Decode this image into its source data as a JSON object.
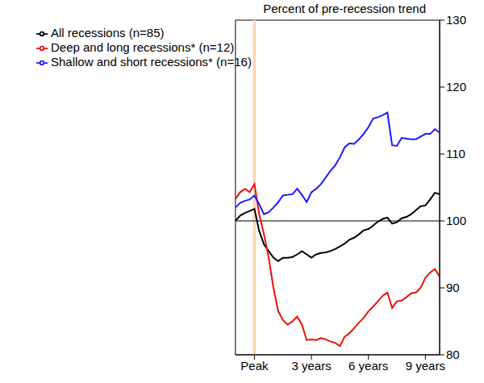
{
  "chart_data": {
    "type": "line",
    "title": "Percent of pre-recession trend",
    "x": [
      -4,
      -3,
      -2,
      -1,
      0,
      1,
      2,
      3,
      4,
      5,
      6,
      7,
      8,
      9,
      10,
      11,
      12,
      13,
      14,
      15,
      16,
      17,
      18,
      19,
      20,
      21,
      22,
      23,
      24,
      25,
      26,
      27,
      28,
      29,
      30,
      31,
      32,
      33,
      34,
      35,
      36,
      37,
      38,
      39
    ],
    "series": [
      {
        "name": "All recessions (n=85)",
        "color": "#000000",
        "values": [
          100,
          100.8,
          101.2,
          101.5,
          101.8,
          98.5,
          96.5,
          95.5,
          94.5,
          94,
          94.5,
          94.5,
          94.6,
          95,
          95.5,
          95,
          94.5,
          95,
          95.2,
          95.3,
          95.5,
          95.8,
          96.2,
          96.6,
          97.2,
          97.5,
          98,
          98.6,
          98.8,
          99.3,
          99.9,
          100.3,
          100.5,
          99.6,
          99.8,
          100.4,
          100.6,
          101,
          101.6,
          102.2,
          102.3,
          103.2,
          104.2,
          104
        ]
      },
      {
        "name": "Deep and long recessions* (n=12)",
        "color": "#e8100c",
        "values": [
          103.3,
          104.3,
          104.8,
          104.3,
          105.5,
          101,
          98,
          94.5,
          90,
          86.5,
          85.2,
          84.5,
          85,
          85.7,
          84.5,
          82.2,
          82.3,
          82.2,
          82.5,
          82.3,
          82,
          81.8,
          81.3,
          82.7,
          83.2,
          84,
          84.8,
          85.5,
          86.5,
          87.2,
          88,
          88.8,
          89.3,
          87,
          88,
          88.1,
          88.6,
          89.2,
          89.3,
          90,
          91.5,
          92.3,
          92.8,
          91.7
        ]
      },
      {
        "name": "Shallow and short recessions* (n=16)",
        "color": "#1a1aff",
        "values": [
          102,
          102.7,
          103,
          103.2,
          103.8,
          102.5,
          101,
          101.3,
          102,
          102.8,
          103.8,
          103.9,
          104,
          104.8,
          103.9,
          102.8,
          104.3,
          104.8,
          105.5,
          106.5,
          107.5,
          108.3,
          109.5,
          111,
          111.6,
          111.5,
          112.2,
          113,
          114,
          115.3,
          115.5,
          115.8,
          116.2,
          111.3,
          111.2,
          112.4,
          112.3,
          112.2,
          112.2,
          112.6,
          113,
          113,
          113.7,
          113.2
        ]
      }
    ],
    "xlim": [
      -4,
      39
    ],
    "xticks": [
      {
        "value": 0,
        "label": "Peak"
      },
      {
        "value": 12,
        "label": "3 years"
      },
      {
        "value": 24,
        "label": "6 years"
      },
      {
        "value": 36,
        "label": "9 years"
      }
    ],
    "ylim": [
      80,
      130
    ],
    "yticks": [
      80,
      90,
      100,
      110,
      120,
      130
    ],
    "grid": false,
    "legend": "top-left",
    "reference_line": 100,
    "highlight": {
      "x0": -0.3,
      "x1": 0.3,
      "color": "#fcd5b0"
    }
  }
}
